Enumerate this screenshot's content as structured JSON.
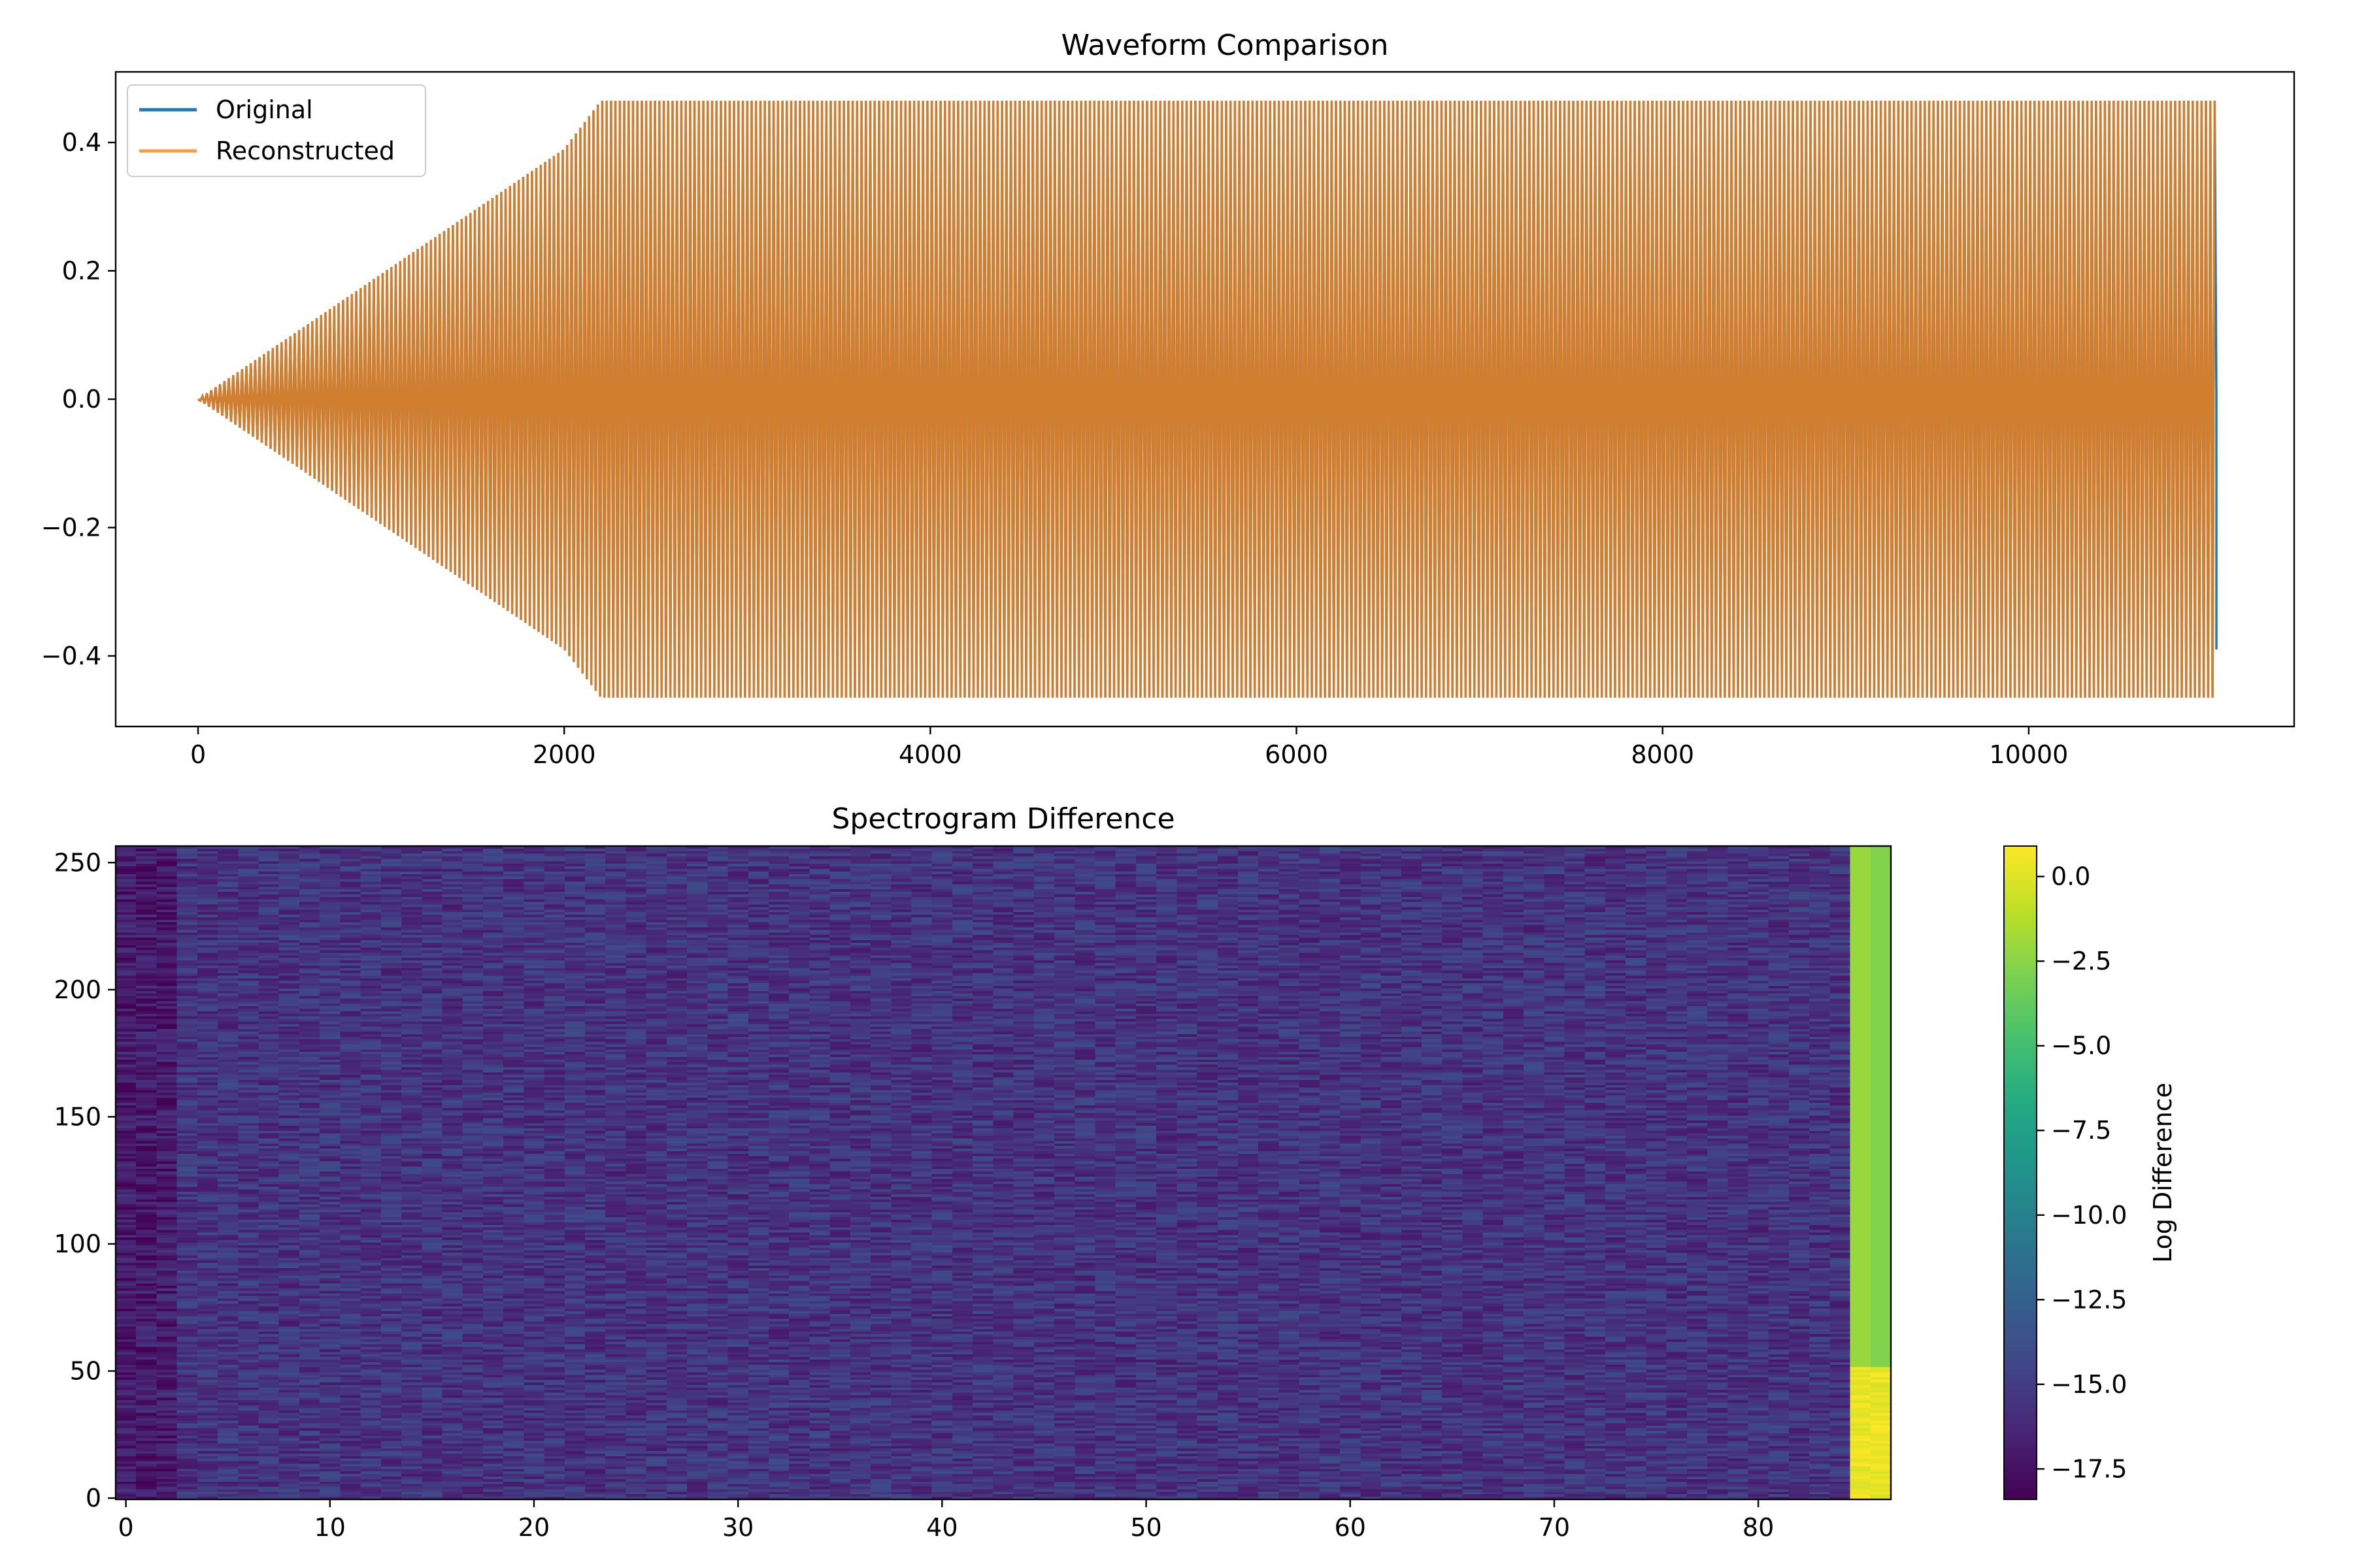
{
  "chart_data": [
    {
      "type": "line",
      "title": "Waveform Comparison",
      "xlabel": "",
      "ylabel": "",
      "xlim": [
        -450,
        11450
      ],
      "ylim": [
        -0.51,
        0.51
      ],
      "x_ticks": [
        0,
        2000,
        4000,
        6000,
        8000,
        10000
      ],
      "x_tick_labels": [
        "0",
        "2000",
        "4000",
        "6000",
        "8000",
        "10000"
      ],
      "y_ticks": [
        -0.4,
        -0.2,
        0.0,
        0.2,
        0.4
      ],
      "y_tick_labels": [
        "−0.4",
        "−0.2",
        "0.0",
        "0.2",
        "0.4"
      ],
      "grid": false,
      "legend_position": "upper-left",
      "series": [
        {
          "name": "Original",
          "color": "#1f77b4",
          "length": 11025,
          "envelope_x": [
            0,
            2000,
            2200,
            11025
          ],
          "upper": [
            0.0,
            0.39,
            0.465,
            0.465
          ],
          "lower": [
            0.0,
            -0.39,
            -0.465,
            -0.465
          ],
          "end_values": [
            0.01,
            -0.1,
            -0.39
          ]
        },
        {
          "name": "Reconstructed",
          "color": "#ff7f0e",
          "opacity": 0.8,
          "length": 11025,
          "envelope_x": [
            0,
            2000,
            2200,
            11025
          ],
          "upper": [
            0.0,
            0.39,
            0.465,
            0.465
          ],
          "lower": [
            0.0,
            -0.39,
            -0.465,
            -0.465
          ]
        }
      ]
    },
    {
      "type": "heatmap",
      "title": "Spectrogram Difference",
      "xlabel": "",
      "ylabel": "",
      "xlim": [
        -0.5,
        86.5
      ],
      "ylim": [
        -0.5,
        256.5
      ],
      "x_ticks": [
        0,
        10,
        20,
        30,
        40,
        50,
        60,
        70,
        80
      ],
      "x_tick_labels": [
        "0",
        "10",
        "20",
        "30",
        "40",
        "50",
        "60",
        "70",
        "80"
      ],
      "y_ticks": [
        0,
        50,
        100,
        150,
        200,
        250
      ],
      "y_tick_labels": [
        "0",
        "50",
        "100",
        "150",
        "200",
        "250"
      ],
      "n_frames": 87,
      "n_bins": 257,
      "colormap": "viridis",
      "value_range": [
        -18.4,
        0.9
      ],
      "typical_value": -15.5,
      "last_frames": [
        85,
        86
      ],
      "last_frames_value": -2.5,
      "colorbar": {
        "label": "Log Difference",
        "ticks": [
          0.0,
          -2.5,
          -5.0,
          -7.5,
          -10.0,
          -12.5,
          -15.0,
          -17.5
        ],
        "tick_labels": [
          "0.0",
          "−2.5",
          "−5.0",
          "−7.5",
          "−10.0",
          "−12.5",
          "−15.0",
          "−17.5"
        ]
      }
    }
  ]
}
